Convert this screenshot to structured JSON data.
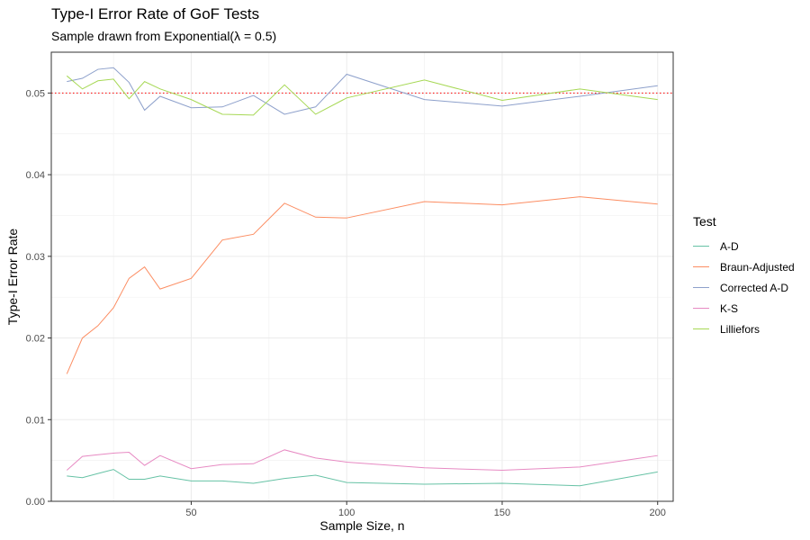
{
  "chart_data": {
    "type": "line",
    "title": "Type-I Error Rate of GoF Tests",
    "subtitle": "Sample drawn from Exponential(λ = 0.5)",
    "xlabel": "Sample Size, n",
    "ylabel": "Type-I Error Rate",
    "xlim": [
      5,
      205
    ],
    "ylim": [
      0,
      0.055
    ],
    "x_ticks": [
      50,
      100,
      150,
      200
    ],
    "y_ticks": [
      0.0,
      0.01,
      0.02,
      0.03,
      0.04,
      0.05
    ],
    "y_tick_labels": [
      "0.00",
      "0.01",
      "0.02",
      "0.03",
      "0.04",
      "0.05"
    ],
    "grid": true,
    "reference_line": {
      "y": 0.05,
      "style": "dotted",
      "color": "#ff0000"
    },
    "legend": {
      "title": "Test",
      "position": "right"
    },
    "x": [
      10,
      15,
      20,
      25,
      30,
      35,
      40,
      50,
      60,
      70,
      80,
      90,
      100,
      125,
      150,
      175,
      200
    ],
    "series": [
      {
        "name": "A-D",
        "color": "#66C2A5",
        "values": [
          0.0031,
          0.0029,
          0.0034,
          0.0039,
          0.0027,
          0.0027,
          0.0031,
          0.0025,
          0.0025,
          0.0022,
          0.0028,
          0.0032,
          0.0023,
          0.0021,
          0.0022,
          0.0019,
          0.0036
        ]
      },
      {
        "name": "Braun-Adjusted",
        "color": "#FC8D62",
        "values": [
          0.0156,
          0.02,
          0.0215,
          0.0237,
          0.0273,
          0.0287,
          0.026,
          0.0273,
          0.032,
          0.0327,
          0.0365,
          0.0348,
          0.0347,
          0.0367,
          0.0363,
          0.0373,
          0.0364
        ]
      },
      {
        "name": "Corrected A-D",
        "color": "#8DA0CB",
        "values": [
          0.0514,
          0.0518,
          0.0529,
          0.0531,
          0.0513,
          0.0479,
          0.0496,
          0.0482,
          0.0483,
          0.0497,
          0.0474,
          0.0483,
          0.0523,
          0.0492,
          0.0484,
          0.0496,
          0.0509
        ]
      },
      {
        "name": "K-S",
        "color": "#E78AC3",
        "values": [
          0.0038,
          0.0055,
          0.0057,
          0.0059,
          0.006,
          0.0044,
          0.0056,
          0.004,
          0.0045,
          0.0046,
          0.0063,
          0.0053,
          0.0048,
          0.0041,
          0.0038,
          0.0042,
          0.0056
        ]
      },
      {
        "name": "Lilliefors",
        "color": "#A6D854",
        "values": [
          0.0521,
          0.0505,
          0.0515,
          0.0517,
          0.0493,
          0.0514,
          0.0505,
          0.0492,
          0.0474,
          0.0473,
          0.051,
          0.0474,
          0.0494,
          0.0516,
          0.0491,
          0.0505,
          0.0492
        ]
      }
    ]
  }
}
